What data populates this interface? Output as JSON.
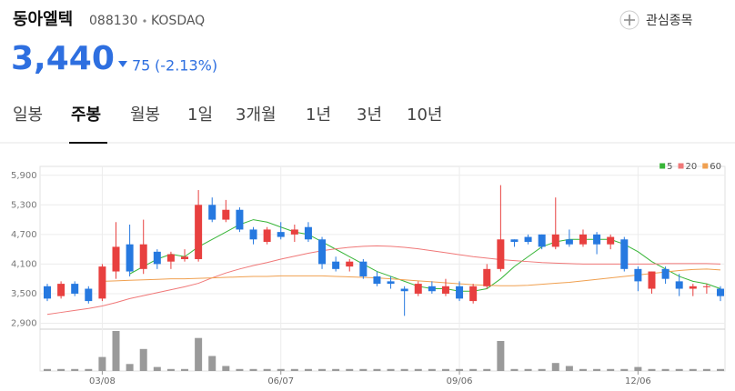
{
  "header": {
    "name": "동아엘텍",
    "code": "088130",
    "market": "KOSDAQ",
    "watch": "관심종목",
    "price": "3,440",
    "change": "75",
    "change_pct": "(-2.13%)"
  },
  "tabs": [
    "일봉",
    "주봉",
    "월봉",
    "1일",
    "3개월",
    "1년",
    "3년",
    "10년"
  ],
  "active_tab": 1,
  "chart_data": {
    "type": "candlestick",
    "categories": [
      null,
      null,
      null,
      null,
      "03/08",
      null,
      null,
      null,
      null,
      null,
      null,
      null,
      null,
      null,
      null,
      null,
      null,
      "06/07",
      null,
      null,
      null,
      null,
      null,
      null,
      null,
      null,
      null,
      null,
      null,
      null,
      "09/06",
      null,
      null,
      null,
      null,
      null,
      null,
      null,
      null,
      null,
      null,
      null,
      null,
      "12/06",
      null,
      null,
      null,
      null,
      null,
      null
    ],
    "candles": {
      "open": [
        3650,
        3450,
        3700,
        3600,
        3400,
        3950,
        4500,
        4000,
        4350,
        4150,
        4200,
        4200,
        5300,
        5000,
        5200,
        4800,
        4550,
        4750,
        4700,
        4850,
        4600,
        4150,
        4050,
        4150,
        3850,
        3750,
        3600,
        3500,
        3650,
        3500,
        3650,
        3350,
        3650,
        4000,
        4600,
        4650,
        4700,
        4450,
        4600,
        4500,
        4700,
        4500,
        4600,
        4000,
        3600,
        4000,
        3750,
        3600,
        3650,
        3600
      ],
      "high": [
        3700,
        3750,
        3750,
        3650,
        4100,
        4950,
        4900,
        5000,
        4400,
        4350,
        4400,
        5600,
        5450,
        5400,
        5250,
        4850,
        4850,
        4950,
        4900,
        4950,
        4650,
        4250,
        4200,
        4200,
        3950,
        3850,
        3650,
        3750,
        3750,
        3800,
        3750,
        3700,
        4100,
        5700,
        4600,
        4700,
        4700,
        5450,
        4800,
        4800,
        4750,
        4700,
        4650,
        4050,
        3950,
        4050,
        3900,
        3700,
        3700,
        3650
      ],
      "low": [
        3350,
        3400,
        3450,
        3300,
        3350,
        3800,
        3850,
        3900,
        4000,
        4000,
        4150,
        4150,
        4950,
        4950,
        4750,
        4500,
        4500,
        4600,
        4550,
        4550,
        4000,
        3950,
        3950,
        3800,
        3650,
        3600,
        3050,
        3450,
        3500,
        3450,
        3350,
        3300,
        3600,
        3950,
        4450,
        4500,
        4400,
        4400,
        4450,
        4450,
        4300,
        4400,
        3950,
        3550,
        3500,
        3700,
        3450,
        3450,
        3500,
        3350
      ],
      "close": [
        3400,
        3700,
        3500,
        3350,
        4050,
        4450,
        3950,
        4500,
        4100,
        4300,
        4250,
        5300,
        5000,
        5200,
        4800,
        4600,
        4800,
        4650,
        4800,
        4600,
        4100,
        4000,
        4150,
        3850,
        3700,
        3700,
        3550,
        3700,
        3550,
        3650,
        3400,
        3650,
        4000,
        4600,
        4550,
        4550,
        4450,
        4700,
        4500,
        4700,
        4500,
        4650,
        4000,
        3750,
        3950,
        3800,
        3600,
        3650,
        3650,
        3450
      ]
    },
    "up_color": "#e8403f",
    "down_color": "#2679e0",
    "series": [
      {
        "name": "5",
        "color": "#37b537",
        "values": [
          null,
          null,
          null,
          null,
          null,
          null,
          3900,
          4050,
          4200,
          4300,
          4250,
          4450,
          4600,
          4750,
          4900,
          5000,
          4950,
          4850,
          4750,
          4700,
          4550,
          4400,
          4250,
          4100,
          3950,
          3850,
          3750,
          3650,
          3600,
          3600,
          3550,
          3550,
          3600,
          3800,
          4050,
          4250,
          4450,
          4550,
          4600,
          4600,
          4600,
          4600,
          4500,
          4350,
          4150,
          4000,
          3850,
          3750,
          3700,
          3600
        ]
      },
      {
        "name": "20",
        "color": "#f07878",
        "values": [
          3080,
          3120,
          3160,
          3200,
          3250,
          3320,
          3400,
          3460,
          3520,
          3580,
          3640,
          3710,
          3820,
          3920,
          4000,
          4070,
          4130,
          4200,
          4260,
          4320,
          4370,
          4410,
          4440,
          4460,
          4470,
          4460,
          4440,
          4410,
          4370,
          4330,
          4290,
          4250,
          4220,
          4190,
          4170,
          4150,
          4130,
          4120,
          4110,
          4100,
          4100,
          4100,
          4100,
          4100,
          4100,
          4110,
          4110,
          4110,
          4110,
          4100
        ]
      },
      {
        "name": "60",
        "color": "#f0a050",
        "values": [
          null,
          null,
          null,
          null,
          3750,
          3760,
          3770,
          3780,
          3790,
          3800,
          3800,
          3810,
          3820,
          3830,
          3840,
          3850,
          3850,
          3860,
          3860,
          3860,
          3860,
          3850,
          3840,
          3830,
          3820,
          3800,
          3780,
          3760,
          3740,
          3720,
          3700,
          3680,
          3670,
          3660,
          3660,
          3670,
          3690,
          3710,
          3730,
          3760,
          3790,
          3820,
          3850,
          3880,
          3910,
          3940,
          3970,
          3990,
          4000,
          3980
        ]
      }
    ],
    "volumes": [
      2,
      2,
      2,
      2,
      14,
      40,
      7,
      22,
      4,
      2,
      2,
      33,
      15,
      5,
      2,
      2,
      2,
      2,
      2,
      2,
      2,
      2,
      2,
      2,
      2,
      2,
      2,
      2,
      2,
      2,
      2,
      2,
      2,
      30,
      2,
      2,
      2,
      8,
      5,
      2,
      2,
      2,
      2,
      4,
      2,
      2,
      2,
      2,
      2,
      2
    ],
    "volume_color": "#9a9a9a",
    "ylim": [
      2780,
      6080
    ],
    "yticks": [
      {
        "value": 2900,
        "label": "2,900"
      },
      {
        "value": 3500,
        "label": "3,500"
      },
      {
        "value": 4100,
        "label": "4,100"
      },
      {
        "value": 4700,
        "label": "4,700"
      },
      {
        "value": 5300,
        "label": "5,300"
      },
      {
        "value": 5900,
        "label": "5,900"
      }
    ],
    "grid": true,
    "legend": "top-right"
  }
}
